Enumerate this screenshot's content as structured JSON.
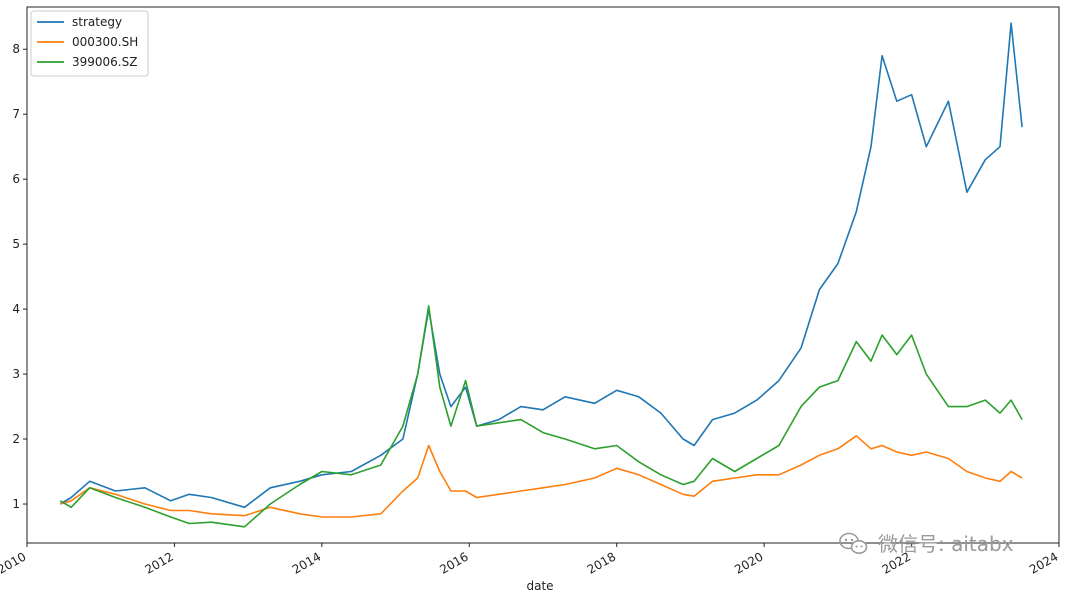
{
  "chart_data": {
    "type": "line",
    "xlabel": "date",
    "ylabel": "",
    "xlim": [
      2010.0,
      2024.0
    ],
    "ylim": [
      0.4,
      8.65
    ],
    "x_ticks": [
      2010,
      2012,
      2014,
      2016,
      2018,
      2020,
      2022,
      2024
    ],
    "x_tick_labels": [
      "2010",
      "2012",
      "2014",
      "2016",
      "2018",
      "2020",
      "2022",
      "2024"
    ],
    "y_ticks": [
      1,
      2,
      3,
      4,
      5,
      6,
      7,
      8
    ],
    "y_tick_labels": [
      "1",
      "2",
      "3",
      "4",
      "5",
      "6",
      "7",
      "8"
    ],
    "grid": false,
    "legend_position": "top-left",
    "x": [
      2010.45,
      2010.6,
      2010.85,
      2011.2,
      2011.6,
      2011.95,
      2012.2,
      2012.5,
      2012.95,
      2013.3,
      2013.7,
      2014.0,
      2014.4,
      2014.8,
      2015.1,
      2015.3,
      2015.45,
      2015.6,
      2015.75,
      2015.95,
      2016.1,
      2016.4,
      2016.7,
      2017.0,
      2017.3,
      2017.7,
      2018.0,
      2018.3,
      2018.6,
      2018.9,
      2019.05,
      2019.3,
      2019.6,
      2019.9,
      2020.2,
      2020.5,
      2020.75,
      2021.0,
      2021.25,
      2021.45,
      2021.6,
      2021.8,
      2022.0,
      2022.2,
      2022.5,
      2022.75,
      2023.0,
      2023.2,
      2023.35,
      2023.5
    ],
    "series": [
      {
        "name": "strategy",
        "color": "#1f77b4",
        "values": [
          1.0,
          1.1,
          1.35,
          1.2,
          1.25,
          1.05,
          1.15,
          1.1,
          0.95,
          1.25,
          1.35,
          1.45,
          1.5,
          1.75,
          2.0,
          3.0,
          4.0,
          3.0,
          2.5,
          2.8,
          2.2,
          2.3,
          2.5,
          2.45,
          2.65,
          2.55,
          2.75,
          2.65,
          2.4,
          2.0,
          1.9,
          2.3,
          2.4,
          2.6,
          2.9,
          3.4,
          4.3,
          4.7,
          5.5,
          6.5,
          7.9,
          7.2,
          7.3,
          6.5,
          7.2,
          5.8,
          6.3,
          6.5,
          8.4,
          6.8
        ]
      },
      {
        "name": "000300.SH",
        "color": "#ff7f0e",
        "values": [
          1.0,
          1.05,
          1.25,
          1.15,
          1.0,
          0.9,
          0.9,
          0.85,
          0.82,
          0.95,
          0.85,
          0.8,
          0.8,
          0.85,
          1.2,
          1.4,
          1.9,
          1.5,
          1.2,
          1.2,
          1.1,
          1.15,
          1.2,
          1.25,
          1.3,
          1.4,
          1.55,
          1.45,
          1.3,
          1.15,
          1.12,
          1.35,
          1.4,
          1.45,
          1.45,
          1.6,
          1.75,
          1.85,
          2.05,
          1.85,
          1.9,
          1.8,
          1.75,
          1.8,
          1.7,
          1.5,
          1.4,
          1.35,
          1.5,
          1.4
        ]
      },
      {
        "name": "399006.SZ",
        "color": "#2ca02c",
        "values": [
          1.05,
          0.95,
          1.25,
          1.1,
          0.95,
          0.8,
          0.7,
          0.72,
          0.65,
          1.0,
          1.3,
          1.5,
          1.45,
          1.6,
          2.2,
          3.0,
          4.05,
          2.8,
          2.2,
          2.9,
          2.2,
          2.25,
          2.3,
          2.1,
          2.0,
          1.85,
          1.9,
          1.65,
          1.45,
          1.3,
          1.35,
          1.7,
          1.5,
          1.7,
          1.9,
          2.5,
          2.8,
          2.9,
          3.5,
          3.2,
          3.6,
          3.3,
          3.6,
          3.0,
          2.5,
          2.5,
          2.6,
          2.4,
          2.6,
          2.3
        ]
      }
    ]
  },
  "watermark": {
    "text": "微信号: aitabx",
    "icon": "wechat-icon"
  }
}
